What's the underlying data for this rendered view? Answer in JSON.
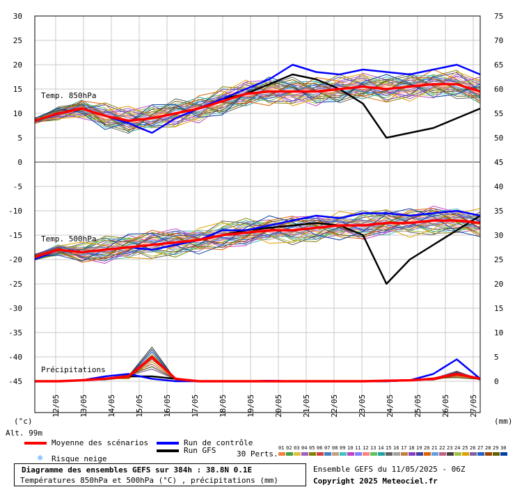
{
  "chart_data": {
    "type": "line",
    "title": "Diagramme des ensembles GEFS sur 384h : 38.8N 0.1E",
    "subtitle": "Températures 850hPa et 500hPa (°C) , précipitations (mm)",
    "left_axis_unit": "(°c)",
    "right_axis_unit": "(mm)",
    "altitude": "Alt. 99m",
    "left_ticks": [
      30,
      25,
      20,
      15,
      10,
      5,
      0,
      -5,
      -10,
      -15,
      -20,
      -25,
      -30,
      -35,
      -40,
      -45
    ],
    "right_ticks_850": [
      75,
      70,
      65,
      60,
      55,
      50,
      45
    ],
    "right_ticks_500": [
      40,
      35,
      30,
      25,
      20,
      15,
      10,
      5,
      0
    ],
    "dates": [
      "12/05",
      "13/05",
      "14/05",
      "15/05",
      "16/05",
      "17/05",
      "18/05",
      "19/05",
      "20/05",
      "21/05",
      "22/05",
      "23/05",
      "24/05",
      "25/05",
      "26/05",
      "27/05"
    ],
    "panel_labels": {
      "t850": "Temp. 850hPa",
      "t500": "Temp. 500hPa",
      "precip": "Précipitations"
    },
    "series": [
      {
        "name": "Moyenne des scénarios",
        "t850": [
          8.5,
          10,
          11,
          9.5,
          8.5,
          9,
          10,
          11,
          12.5,
          14,
          14.5,
          14.5,
          14.5,
          15,
          15.5,
          15,
          15.5,
          16,
          16,
          14.5
        ],
        "t500": [
          -19.5,
          -18,
          -18.5,
          -18,
          -17.5,
          -17,
          -16.5,
          -16,
          -15,
          -14.5,
          -14,
          -14,
          -13.5,
          -13,
          -13,
          -12.5,
          -12.5,
          -12,
          -12,
          -12.5
        ],
        "precip": [
          0,
          0,
          0.2,
          0.5,
          1,
          5,
          0.5,
          0,
          0,
          0,
          0,
          0,
          0,
          0,
          0,
          0.1,
          0.2,
          0.5,
          1.5,
          0.5
        ]
      },
      {
        "name": "Run de contrôle",
        "t850": [
          8.5,
          10,
          11,
          9.5,
          8,
          6,
          9,
          11,
          13,
          15,
          17,
          20,
          18.5,
          18,
          19,
          18.5,
          18,
          19,
          20,
          18
        ],
        "t500": [
          -20,
          -18,
          -18.5,
          -18,
          -17.5,
          -18,
          -17,
          -16,
          -14,
          -14,
          -13,
          -12,
          -11,
          -11.5,
          -10.5,
          -10.5,
          -11,
          -10.5,
          -10,
          -11
        ],
        "precip": [
          0,
          0,
          0.2,
          1,
          1.5,
          0.5,
          0,
          0,
          0,
          0,
          0.1,
          0,
          0,
          0,
          0,
          0,
          0.2,
          1.5,
          4.5,
          0.5
        ]
      },
      {
        "name": "Run GFS",
        "t850": [
          8.5,
          10,
          11,
          9.5,
          8.5,
          9,
          10,
          11,
          13,
          14,
          16,
          18,
          17,
          15,
          12,
          5,
          6,
          7,
          9,
          11
        ],
        "t500": [
          -19.5,
          -18,
          -18.5,
          -18,
          -17.5,
          -17,
          -16.5,
          -16,
          -15,
          -14,
          -13.5,
          -13,
          -12.5,
          -13,
          -15,
          -25,
          -20,
          -17,
          -14,
          -11
        ],
        "precip": [
          0,
          0,
          0.2,
          0.5,
          1,
          1,
          0.5,
          0,
          0,
          0,
          0,
          0,
          0,
          0,
          0,
          0,
          0.2,
          0.5,
          1.5,
          0.5
        ]
      }
    ],
    "snow_legend": "Risque neige",
    "perts_label": "30 Perts.",
    "perts": [
      "01",
      "02",
      "03",
      "04",
      "05",
      "06",
      "07",
      "08",
      "09",
      "10",
      "11",
      "12",
      "13",
      "14",
      "15",
      "16",
      "17",
      "18",
      "19",
      "20",
      "21",
      "22",
      "23",
      "24",
      "25",
      "26",
      "27",
      "28",
      "29",
      "30"
    ],
    "perts_colors": [
      "#f08040",
      "#40a040",
      "#e0c040",
      "#a060c0",
      "#808000",
      "#d04040",
      "#4080c0",
      "#c0a080",
      "#40c0c0",
      "#c040c0",
      "#8080ff",
      "#ff8080",
      "#60c060",
      "#20a0a0",
      "#606060",
      "#a0a0a0",
      "#c08040",
      "#8040c0",
      "#4040a0",
      "#e06000",
      "#60a0e0",
      "#c06080",
      "#404040",
      "#a0c040",
      "#e0a000",
      "#8060a0",
      "#2060c0",
      "#a04000",
      "#606000",
      "#0040a0"
    ],
    "colors": {
      "mean": "#ff0000",
      "control": "#0000ff",
      "gfs": "#000000",
      "snow": "#40a0ff"
    }
  },
  "footer": {
    "run_info": "Ensemble GEFS du 11/05/2025 - 06Z",
    "copyright": "Copyright 2025 Meteociel.fr"
  }
}
